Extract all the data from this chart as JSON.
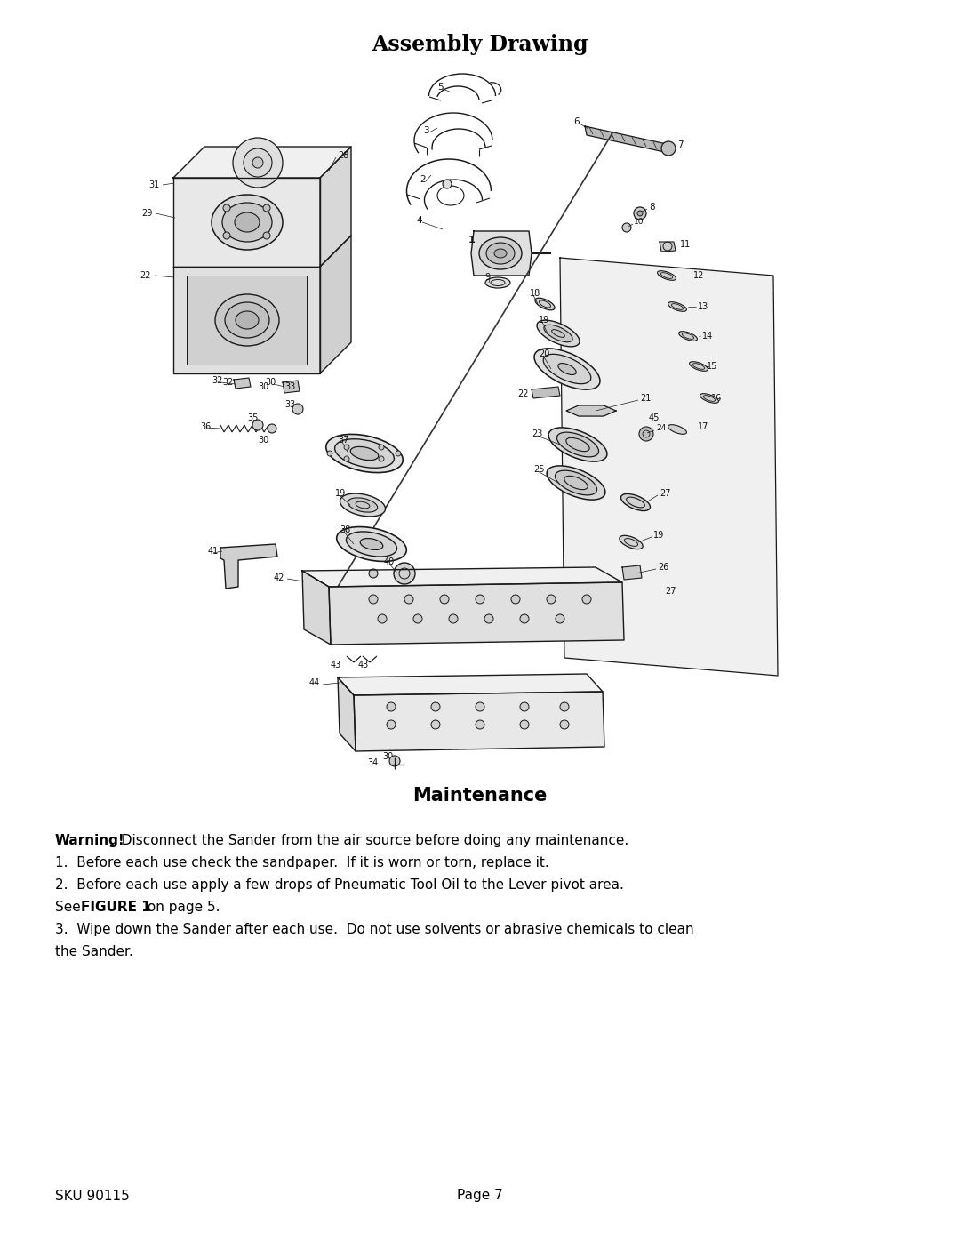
{
  "title": "Assembly Drawing",
  "maintenance_title": "Maintenance",
  "background_color": "#ffffff",
  "text_color": "#000000",
  "warning_bold": "Warning!",
  "warning_rest": "  Disconnect the Sander from the air source before doing any maintenance.",
  "point1": "1.  Before each use check the sandpaper.  If it is worn or torn, replace it.",
  "point2": "2.  Before each use apply a few drops of Pneumatic Tool Oil to the Lever pivot area.",
  "see_normal": "See ",
  "see_bold": "FIGURE 1",
  "see_rest": " on page 5.",
  "point3a": "3.  Wipe down the Sander after each use.  Do not use solvents or abrasive chemicals to clean",
  "point3b": "the Sander.",
  "sku_text": "SKU 90115",
  "page_text": "Page 7",
  "fig_w": 1080,
  "fig_h": 1397,
  "dpi": 100
}
